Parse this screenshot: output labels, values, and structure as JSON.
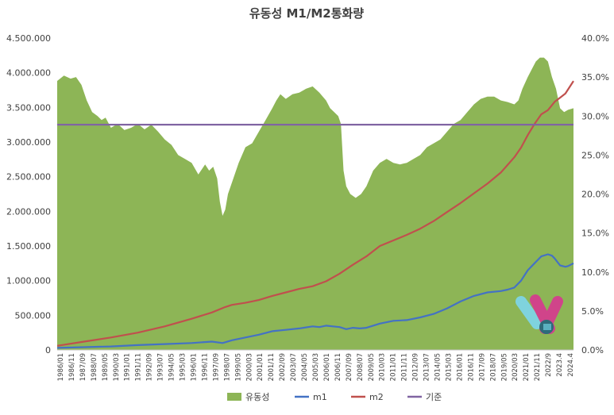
{
  "chart_data": {
    "type": "area",
    "title": "유동성 M1/M2통화량",
    "xlabel": "",
    "ylabel": "",
    "ylabel_right": "",
    "ylim": [
      0,
      4500000
    ],
    "ylim_right": [
      0,
      0.4
    ],
    "yticks": [
      "0",
      "500.000",
      "1.000.000",
      "1.500.000",
      "2.000.000",
      "2.500.000",
      "3.000.000",
      "3.500.000",
      "4.000.000",
      "4.500.000"
    ],
    "yticks_right": [
      "0.0%",
      "5.0%",
      "10.0%",
      "15.0%",
      "20.0%",
      "25.0%",
      "30.0%",
      "35.0%",
      "40.0%"
    ],
    "x_start": "1986/01",
    "x_end": "2024.4",
    "x_labels": [
      "1986/01",
      "1986/11",
      "1987/09",
      "1988/07",
      "1989/05",
      "1990/03",
      "1991/01",
      "1991/11",
      "1992/09",
      "1993/07",
      "1994/05",
      "1995/03",
      "1996/01",
      "1996/11",
      "1997/09",
      "1998/07",
      "1999/05",
      "2000/03",
      "2001/01",
      "2001/11",
      "2002/09",
      "2003/07",
      "2004/05",
      "2005/03",
      "2006/01",
      "2006/11",
      "2007/09",
      "2008/07",
      "2009/05",
      "2010/03",
      "2011/01",
      "2011/11",
      "2012/09",
      "2013/07",
      "2014/05",
      "2015/03",
      "2016/01",
      "2016/11",
      "2017/09",
      "2018/07",
      "2019/05",
      "2020/03",
      "2021/01",
      "2021/11",
      "2022/9",
      "2023.4",
      "2024.4"
    ],
    "legend_position": "bottom",
    "grid": false,
    "series": [
      {
        "name": "유동성",
        "type": "area",
        "axis": "right",
        "color": "#8db556",
        "x": [
          1986.0,
          1986.5,
          1987.0,
          1987.4,
          1987.8,
          1988.2,
          1988.6,
          1989.0,
          1989.3,
          1989.6,
          1990.0,
          1990.5,
          1991.0,
          1991.5,
          1992.0,
          1992.5,
          1993.0,
          1993.5,
          1994.0,
          1994.5,
          1995.0,
          1995.5,
          1996.0,
          1996.5,
          1997.0,
          1997.3,
          1997.6,
          1997.9,
          1998.1,
          1998.3,
          1998.5,
          1998.7,
          1999.0,
          1999.5,
          2000.0,
          2000.5,
          2001.0,
          2001.5,
          2002.0,
          2002.3,
          2002.6,
          2003.0,
          2003.5,
          2004.0,
          2004.5,
          2005.0,
          2005.5,
          2006.0,
          2006.3,
          2006.6,
          2006.9,
          2007.1,
          2007.3,
          2007.5,
          2007.8,
          2008.2,
          2008.6,
          2009.0,
          2009.5,
          2010.0,
          2010.5,
          2011.0,
          2011.5,
          2012.0,
          2012.5,
          2013.0,
          2013.5,
          2014.0,
          2014.5,
          2015.0,
          2015.5,
          2016.0,
          2016.5,
          2017.0,
          2017.5,
          2018.0,
          2018.5,
          2019.0,
          2019.5,
          2020.0,
          2020.3,
          2020.6,
          2021.0,
          2021.3,
          2021.6,
          2021.9,
          2022.2,
          2022.5,
          2022.8,
          2023.1,
          2023.4,
          2023.7,
          2024.0,
          2024.4
        ],
        "values": [
          0.345,
          0.352,
          0.348,
          0.35,
          0.34,
          0.32,
          0.305,
          0.3,
          0.295,
          0.298,
          0.285,
          0.29,
          0.282,
          0.285,
          0.29,
          0.283,
          0.289,
          0.28,
          0.27,
          0.263,
          0.25,
          0.245,
          0.24,
          0.225,
          0.238,
          0.23,
          0.235,
          0.22,
          0.19,
          0.172,
          0.18,
          0.2,
          0.215,
          0.24,
          0.26,
          0.265,
          0.28,
          0.295,
          0.31,
          0.32,
          0.328,
          0.322,
          0.328,
          0.33,
          0.335,
          0.338,
          0.33,
          0.32,
          0.31,
          0.305,
          0.3,
          0.29,
          0.23,
          0.21,
          0.2,
          0.195,
          0.2,
          0.21,
          0.23,
          0.24,
          0.245,
          0.24,
          0.238,
          0.24,
          0.245,
          0.25,
          0.26,
          0.265,
          0.27,
          0.28,
          0.29,
          0.295,
          0.305,
          0.315,
          0.322,
          0.325,
          0.325,
          0.32,
          0.318,
          0.315,
          0.32,
          0.335,
          0.35,
          0.36,
          0.37,
          0.375,
          0.375,
          0.37,
          0.35,
          0.335,
          0.31,
          0.305,
          0.308,
          0.31
        ]
      },
      {
        "name": "m1",
        "type": "line",
        "axis": "left",
        "color": "#4472c4",
        "x": [
          1986.0,
          1988.0,
          1990.0,
          1992.0,
          1994.0,
          1996.0,
          1997.5,
          1998.3,
          1999.0,
          2000.0,
          2001.0,
          2002.0,
          2003.0,
          2004.0,
          2005.0,
          2005.5,
          2006.0,
          2006.5,
          2007.0,
          2007.5,
          2008.0,
          2008.5,
          2009.0,
          2010.0,
          2011.0,
          2012.0,
          2013.0,
          2014.0,
          2015.0,
          2016.0,
          2017.0,
          2018.0,
          2019.0,
          2019.5,
          2020.0,
          2020.5,
          2021.0,
          2021.5,
          2022.0,
          2022.5,
          2022.8,
          2023.0,
          2023.4,
          2023.8,
          2024.0,
          2024.4
        ],
        "values": [
          30000,
          40000,
          50000,
          70000,
          85000,
          100000,
          120000,
          100000,
          140000,
          180000,
          220000,
          270000,
          290000,
          310000,
          340000,
          330000,
          350000,
          340000,
          330000,
          300000,
          320000,
          310000,
          320000,
          380000,
          420000,
          430000,
          470000,
          520000,
          600000,
          700000,
          780000,
          830000,
          850000,
          870000,
          900000,
          1000000,
          1150000,
          1250000,
          1350000,
          1380000,
          1360000,
          1320000,
          1220000,
          1200000,
          1210000,
          1250000
        ]
      },
      {
        "name": "m2",
        "type": "line",
        "axis": "left",
        "color": "#c0504d",
        "x": [
          1986.0,
          1988.0,
          1990.0,
          1992.0,
          1994.0,
          1996.0,
          1997.5,
          1998.5,
          1999.0,
          2000.0,
          2001.0,
          2002.0,
          2003.0,
          2004.0,
          2005.0,
          2006.0,
          2007.0,
          2008.0,
          2009.0,
          2010.0,
          2011.0,
          2012.0,
          2013.0,
          2014.0,
          2015.0,
          2016.0,
          2017.0,
          2018.0,
          2019.0,
          2020.0,
          2020.5,
          2021.0,
          2021.5,
          2022.0,
          2022.5,
          2023.0,
          2023.4,
          2023.8,
          2024.0,
          2024.4
        ],
        "values": [
          60000,
          120000,
          180000,
          250000,
          340000,
          450000,
          540000,
          620000,
          650000,
          680000,
          720000,
          780000,
          830000,
          880000,
          920000,
          990000,
          1100000,
          1230000,
          1350000,
          1500000,
          1580000,
          1660000,
          1750000,
          1860000,
          1990000,
          2120000,
          2260000,
          2400000,
          2560000,
          2780000,
          2920000,
          3100000,
          3260000,
          3400000,
          3460000,
          3580000,
          3640000,
          3700000,
          3760000,
          3880000
        ]
      },
      {
        "name": "기준",
        "type": "line",
        "axis": "right",
        "color": "#8064a2",
        "x": [
          1986.0,
          2024.4
        ],
        "values": [
          0.289,
          0.289
        ]
      }
    ]
  }
}
